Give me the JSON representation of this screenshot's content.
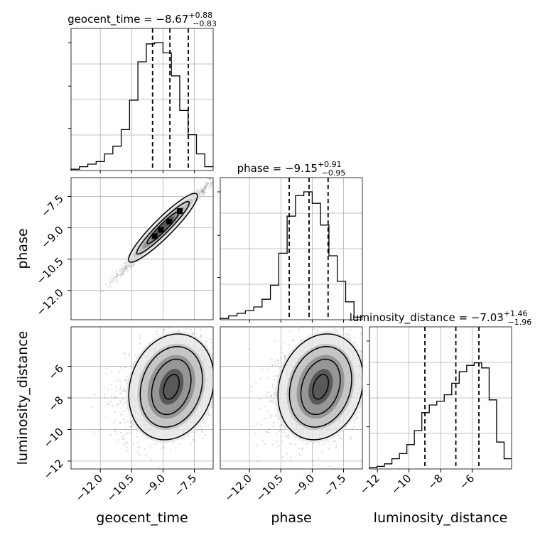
{
  "chart_data": {
    "type": "corner",
    "parameters": [
      "geocent_time",
      "phase",
      "luminosity_distance"
    ],
    "titles": [
      {
        "param": "geocent_time",
        "prefix": "geocent_time = −8.67",
        "plus": "+0.88",
        "minus": "−0.83"
      },
      {
        "param": "phase",
        "prefix": "phase = −9.15",
        "plus": "+0.91",
        "minus": "−0.95"
      },
      {
        "param": "luminosity_distance",
        "prefix": "luminosity_distance = −7.03",
        "plus": "+1.46",
        "minus": "−1.96"
      }
    ],
    "axis_labels": {
      "x": [
        "geocent_time",
        "phase",
        "luminosity_distance"
      ],
      "y": [
        "phase",
        "luminosity_distance"
      ]
    },
    "ranges": [
      [
        -13.4,
        -6.6
      ],
      [
        -13.4,
        -6.6
      ],
      [
        -12.5,
        -3.5
      ]
    ],
    "ticks": [
      {
        "values": [
          -12.0,
          -10.5,
          -9.0,
          -7.5
        ],
        "labels": [
          "−12.0",
          "−10.5",
          "−9.0",
          "−7.5"
        ]
      },
      {
        "values": [
          -12.0,
          -10.5,
          -9.0,
          -7.5
        ],
        "labels": [
          "−12.0",
          "−10.5",
          "−9.0",
          "−7.5"
        ]
      },
      {
        "values": [
          -12,
          -10,
          -8,
          -6
        ],
        "labels": [
          "−12",
          "−10",
          "−8",
          "−6"
        ]
      }
    ],
    "quantiles": [
      [
        -9.5,
        -8.67,
        -7.79
      ],
      [
        -10.1,
        -9.15,
        -8.24
      ],
      [
        -8.99,
        -7.03,
        -5.57
      ]
    ],
    "histograms": [
      [
        0.01,
        0.03,
        0.05,
        0.07,
        0.13,
        0.19,
        0.32,
        0.55,
        0.85,
        0.99,
        1.0,
        0.92,
        0.74,
        0.47,
        0.28,
        0.13,
        0.03
      ],
      [
        0.01,
        0.03,
        0.05,
        0.07,
        0.1,
        0.16,
        0.27,
        0.52,
        0.81,
        0.97,
        1.0,
        0.91,
        0.74,
        0.5,
        0.3,
        0.14,
        0.02
      ],
      [
        0.01,
        0.02,
        0.04,
        0.08,
        0.12,
        0.19,
        0.3,
        0.44,
        0.5,
        0.53,
        0.58,
        0.67,
        0.76,
        0.81,
        0.83,
        0.79,
        0.54,
        0.21,
        0.08
      ]
    ],
    "grid": true
  }
}
